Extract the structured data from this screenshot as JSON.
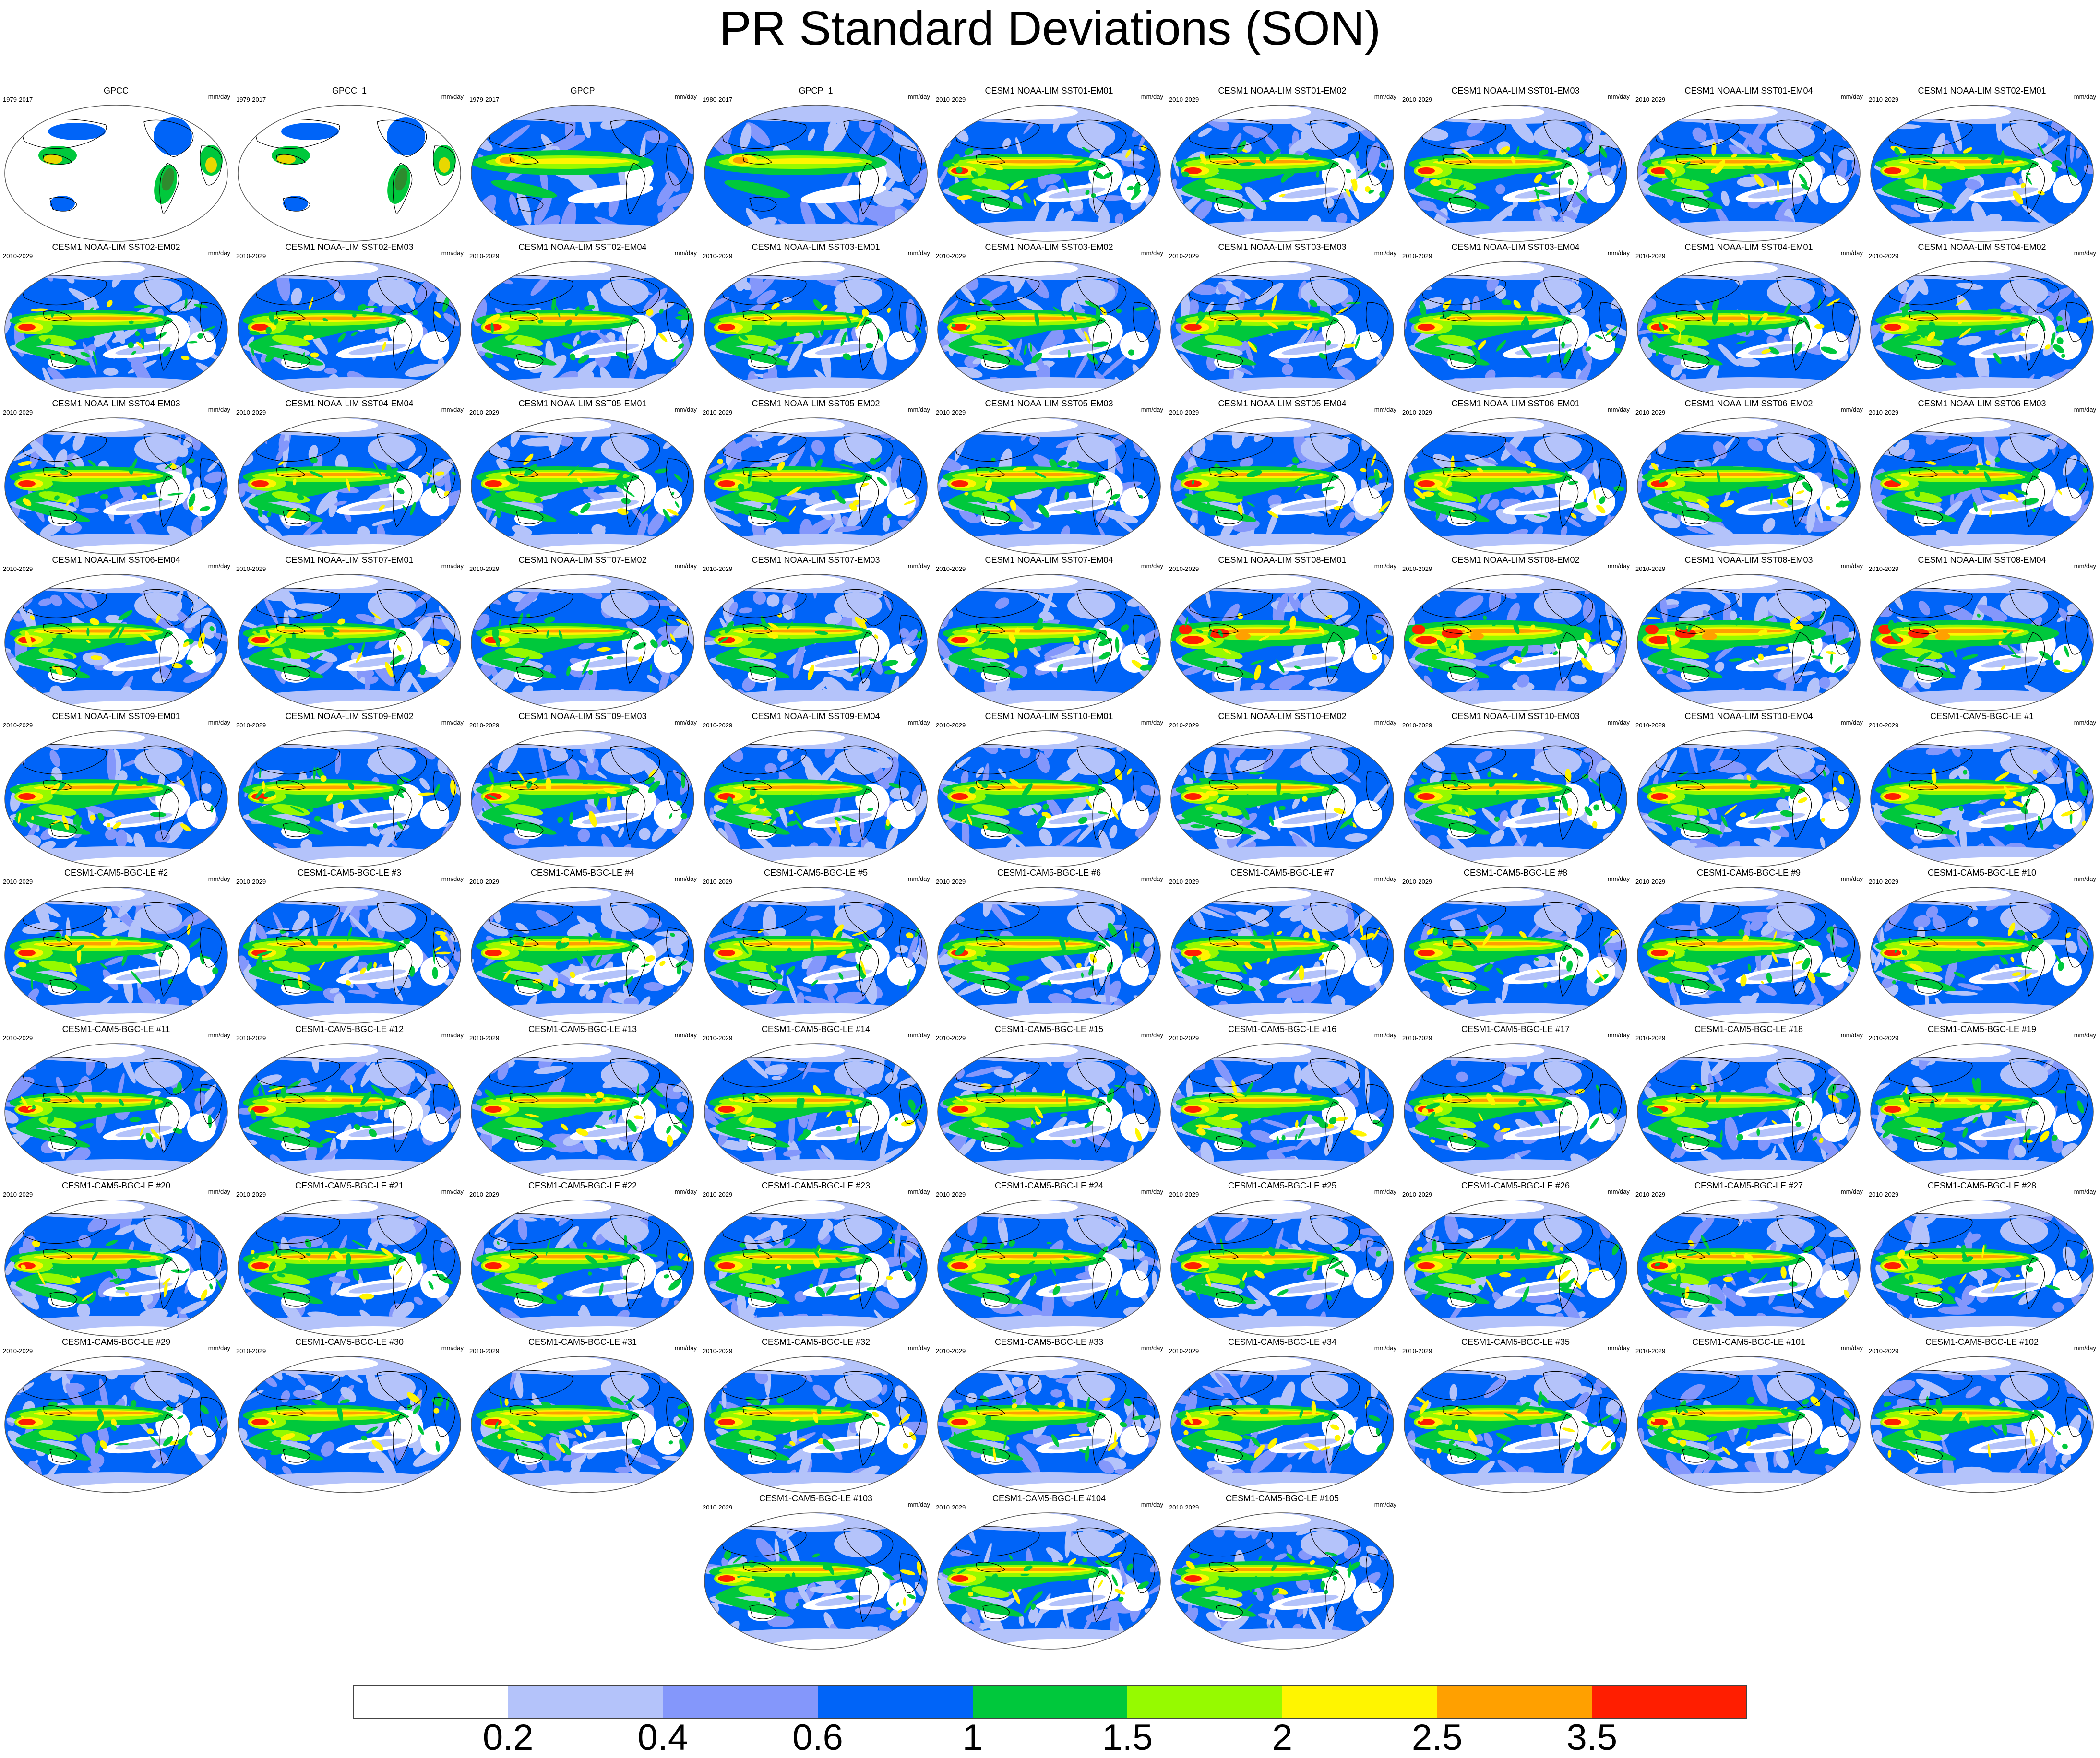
{
  "title": "PR Standard Deviations (SON)",
  "units": "mm/day",
  "panels": [
    {
      "name": "GPCC",
      "years": "1979-2017",
      "style": "land"
    },
    {
      "name": "GPCC_1",
      "years": "1979-2017",
      "style": "land"
    },
    {
      "name": "GPCP",
      "years": "1979-2017",
      "style": "obs"
    },
    {
      "name": "GPCP_1",
      "years": "1980-2017",
      "style": "obs"
    },
    {
      "name": "CESM1 NOAA-LIM SST01-EM01",
      "years": "2010-2029",
      "style": "model"
    },
    {
      "name": "CESM1 NOAA-LIM SST01-EM02",
      "years": "2010-2029",
      "style": "model"
    },
    {
      "name": "CESM1 NOAA-LIM SST01-EM03",
      "years": "2010-2029",
      "style": "model"
    },
    {
      "name": "CESM1 NOAA-LIM SST01-EM04",
      "years": "2010-2029",
      "style": "model"
    },
    {
      "name": "CESM1 NOAA-LIM SST02-EM01",
      "years": "2010-2029",
      "style": "model"
    },
    {
      "name": "CESM1 NOAA-LIM SST02-EM02",
      "years": "2010-2029",
      "style": "model"
    },
    {
      "name": "CESM1 NOAA-LIM SST02-EM03",
      "years": "2010-2029",
      "style": "model"
    },
    {
      "name": "CESM1 NOAA-LIM SST02-EM04",
      "years": "2010-2029",
      "style": "model"
    },
    {
      "name": "CESM1 NOAA-LIM SST03-EM01",
      "years": "2010-2029",
      "style": "model"
    },
    {
      "name": "CESM1 NOAA-LIM SST03-EM02",
      "years": "2010-2029",
      "style": "model"
    },
    {
      "name": "CESM1 NOAA-LIM SST03-EM03",
      "years": "2010-2029",
      "style": "model"
    },
    {
      "name": "CESM1 NOAA-LIM SST03-EM04",
      "years": "2010-2029",
      "style": "model"
    },
    {
      "name": "CESM1 NOAA-LIM SST04-EM01",
      "years": "2010-2029",
      "style": "model"
    },
    {
      "name": "CESM1 NOAA-LIM SST04-EM02",
      "years": "2010-2029",
      "style": "model"
    },
    {
      "name": "CESM1 NOAA-LIM SST04-EM03",
      "years": "2010-2029",
      "style": "model"
    },
    {
      "name": "CESM1 NOAA-LIM SST04-EM04",
      "years": "2010-2029",
      "style": "model"
    },
    {
      "name": "CESM1 NOAA-LIM SST05-EM01",
      "years": "2010-2029",
      "style": "model"
    },
    {
      "name": "CESM1 NOAA-LIM SST05-EM02",
      "years": "2010-2029",
      "style": "model"
    },
    {
      "name": "CESM1 NOAA-LIM SST05-EM03",
      "years": "2010-2029",
      "style": "model"
    },
    {
      "name": "CESM1 NOAA-LIM SST05-EM04",
      "years": "2010-2029",
      "style": "model"
    },
    {
      "name": "CESM1 NOAA-LIM SST06-EM01",
      "years": "2010-2029",
      "style": "model"
    },
    {
      "name": "CESM1 NOAA-LIM SST06-EM02",
      "years": "2010-2029",
      "style": "model"
    },
    {
      "name": "CESM1 NOAA-LIM SST06-EM03",
      "years": "2010-2029",
      "style": "model"
    },
    {
      "name": "CESM1 NOAA-LIM SST06-EM04",
      "years": "2010-2029",
      "style": "model"
    },
    {
      "name": "CESM1 NOAA-LIM SST07-EM01",
      "years": "2010-2029",
      "style": "model"
    },
    {
      "name": "CESM1 NOAA-LIM SST07-EM02",
      "years": "2010-2029",
      "style": "model"
    },
    {
      "name": "CESM1 NOAA-LIM SST07-EM03",
      "years": "2010-2029",
      "style": "model"
    },
    {
      "name": "CESM1 NOAA-LIM SST07-EM04",
      "years": "2010-2029",
      "style": "model"
    },
    {
      "name": "CESM1 NOAA-LIM SST08-EM01",
      "years": "2010-2029",
      "style": "strong"
    },
    {
      "name": "CESM1 NOAA-LIM SST08-EM02",
      "years": "2010-2029",
      "style": "strong"
    },
    {
      "name": "CESM1 NOAA-LIM SST08-EM03",
      "years": "2010-2029",
      "style": "strong"
    },
    {
      "name": "CESM1 NOAA-LIM SST08-EM04",
      "years": "2010-2029",
      "style": "strong"
    },
    {
      "name": "CESM1 NOAA-LIM SST09-EM01",
      "years": "2010-2029",
      "style": "model"
    },
    {
      "name": "CESM1 NOAA-LIM SST09-EM02",
      "years": "2010-2029",
      "style": "model"
    },
    {
      "name": "CESM1 NOAA-LIM SST09-EM03",
      "years": "2010-2029",
      "style": "model"
    },
    {
      "name": "CESM1 NOAA-LIM SST09-EM04",
      "years": "2010-2029",
      "style": "model"
    },
    {
      "name": "CESM1 NOAA-LIM SST10-EM01",
      "years": "2010-2029",
      "style": "model"
    },
    {
      "name": "CESM1 NOAA-LIM SST10-EM02",
      "years": "2010-2029",
      "style": "model"
    },
    {
      "name": "CESM1 NOAA-LIM SST10-EM03",
      "years": "2010-2029",
      "style": "model"
    },
    {
      "name": "CESM1 NOAA-LIM SST10-EM04",
      "years": "2010-2029",
      "style": "model"
    },
    {
      "name": "CESM1-CAM5-BGC-LE #1",
      "years": "2010-2029",
      "style": "model"
    },
    {
      "name": "CESM1-CAM5-BGC-LE #2",
      "years": "2010-2029",
      "style": "model"
    },
    {
      "name": "CESM1-CAM5-BGC-LE #3",
      "years": "2010-2029",
      "style": "model"
    },
    {
      "name": "CESM1-CAM5-BGC-LE #4",
      "years": "2010-2029",
      "style": "model"
    },
    {
      "name": "CESM1-CAM5-BGC-LE #5",
      "years": "2010-2029",
      "style": "model"
    },
    {
      "name": "CESM1-CAM5-BGC-LE #6",
      "years": "2010-2029",
      "style": "model"
    },
    {
      "name": "CESM1-CAM5-BGC-LE #7",
      "years": "2010-2029",
      "style": "model"
    },
    {
      "name": "CESM1-CAM5-BGC-LE #8",
      "years": "2010-2029",
      "style": "model"
    },
    {
      "name": "CESM1-CAM5-BGC-LE #9",
      "years": "2010-2029",
      "style": "model"
    },
    {
      "name": "CESM1-CAM5-BGC-LE #10",
      "years": "2010-2029",
      "style": "model"
    },
    {
      "name": "CESM1-CAM5-BGC-LE #11",
      "years": "2010-2029",
      "style": "model"
    },
    {
      "name": "CESM1-CAM5-BGC-LE #12",
      "years": "2010-2029",
      "style": "model"
    },
    {
      "name": "CESM1-CAM5-BGC-LE #13",
      "years": "2010-2029",
      "style": "model"
    },
    {
      "name": "CESM1-CAM5-BGC-LE #14",
      "years": "2010-2029",
      "style": "model"
    },
    {
      "name": "CESM1-CAM5-BGC-LE #15",
      "years": "2010-2029",
      "style": "model"
    },
    {
      "name": "CESM1-CAM5-BGC-LE #16",
      "years": "2010-2029",
      "style": "model"
    },
    {
      "name": "CESM1-CAM5-BGC-LE #17",
      "years": "2010-2029",
      "style": "model"
    },
    {
      "name": "CESM1-CAM5-BGC-LE #18",
      "years": "2010-2029",
      "style": "model"
    },
    {
      "name": "CESM1-CAM5-BGC-LE #19",
      "years": "2010-2029",
      "style": "model"
    },
    {
      "name": "CESM1-CAM5-BGC-LE #20",
      "years": "2010-2029",
      "style": "model"
    },
    {
      "name": "CESM1-CAM5-BGC-LE #21",
      "years": "2010-2029",
      "style": "model"
    },
    {
      "name": "CESM1-CAM5-BGC-LE #22",
      "years": "2010-2029",
      "style": "model"
    },
    {
      "name": "CESM1-CAM5-BGC-LE #23",
      "years": "2010-2029",
      "style": "model"
    },
    {
      "name": "CESM1-CAM5-BGC-LE #24",
      "years": "2010-2029",
      "style": "model"
    },
    {
      "name": "CESM1-CAM5-BGC-LE #25",
      "years": "2010-2029",
      "style": "model"
    },
    {
      "name": "CESM1-CAM5-BGC-LE #26",
      "years": "2010-2029",
      "style": "model"
    },
    {
      "name": "CESM1-CAM5-BGC-LE #27",
      "years": "2010-2029",
      "style": "model"
    },
    {
      "name": "CESM1-CAM5-BGC-LE #28",
      "years": "2010-2029",
      "style": "model"
    },
    {
      "name": "CESM1-CAM5-BGC-LE #29",
      "years": "2010-2029",
      "style": "model"
    },
    {
      "name": "CESM1-CAM5-BGC-LE #30",
      "years": "2010-2029",
      "style": "model"
    },
    {
      "name": "CESM1-CAM5-BGC-LE #31",
      "years": "2010-2029",
      "style": "model"
    },
    {
      "name": "CESM1-CAM5-BGC-LE #32",
      "years": "2010-2029",
      "style": "model"
    },
    {
      "name": "CESM1-CAM5-BGC-LE #33",
      "years": "2010-2029",
      "style": "model"
    },
    {
      "name": "CESM1-CAM5-BGC-LE #34",
      "years": "2010-2029",
      "style": "model"
    },
    {
      "name": "CESM1-CAM5-BGC-LE #35",
      "years": "2010-2029",
      "style": "model"
    },
    {
      "name": "CESM1-CAM5-BGC-LE #101",
      "years": "2010-2029",
      "style": "model"
    },
    {
      "name": "CESM1-CAM5-BGC-LE #102",
      "years": "2010-2029",
      "style": "model"
    },
    {
      "name": "CESM1-CAM5-BGC-LE #103",
      "years": "2010-2029",
      "style": "model"
    },
    {
      "name": "CESM1-CAM5-BGC-LE #104",
      "years": "2010-2029",
      "style": "model"
    },
    {
      "name": "CESM1-CAM5-BGC-LE #105",
      "years": "2010-2029",
      "style": "model"
    }
  ],
  "colorbar": {
    "colors": [
      "#ffffff",
      "#b4c3fa",
      "#8497fb",
      "#0064f8",
      "#00c83c",
      "#96fa00",
      "#fff500",
      "#ffa000",
      "#ff1e00"
    ],
    "labels": [
      "0.2",
      "0.4",
      "0.6",
      "1",
      "1.5",
      "2",
      "2.5",
      "3.5"
    ]
  },
  "colors": {
    "land_green": "#2e8b2e",
    "land_yellow": "#e8d800",
    "coast": "#000000"
  }
}
